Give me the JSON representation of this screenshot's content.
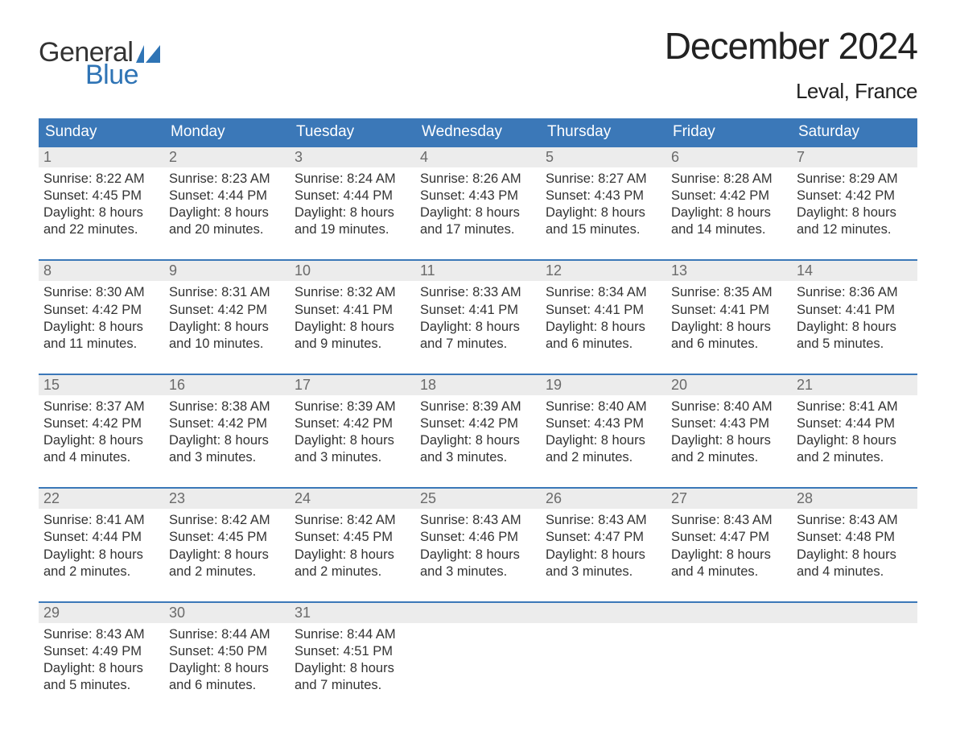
{
  "brand": {
    "part1": "General",
    "part2": "Blue",
    "flag_color": "#2f74b5"
  },
  "title": "December 2024",
  "location": "Leval, France",
  "colors": {
    "header_bg": "#3b78b8",
    "header_text": "#ffffff",
    "daynum_bg": "#ececec",
    "daynum_text": "#6a6a6a",
    "body_text": "#333333",
    "week_border": "#3b78b8",
    "page_bg": "#ffffff",
    "brand_blue": "#2f74b5"
  },
  "fonts": {
    "month_title_pt": 46,
    "location_pt": 26,
    "header_pt": 19,
    "daynum_pt": 18,
    "body_pt": 16.5,
    "logo_pt": 34
  },
  "day_labels": [
    "Sunday",
    "Monday",
    "Tuesday",
    "Wednesday",
    "Thursday",
    "Friday",
    "Saturday"
  ],
  "weeks": [
    [
      {
        "n": "1",
        "sr": "Sunrise: 8:22 AM",
        "ss": "Sunset: 4:45 PM",
        "d1": "Daylight: 8 hours",
        "d2": "and 22 minutes."
      },
      {
        "n": "2",
        "sr": "Sunrise: 8:23 AM",
        "ss": "Sunset: 4:44 PM",
        "d1": "Daylight: 8 hours",
        "d2": "and 20 minutes."
      },
      {
        "n": "3",
        "sr": "Sunrise: 8:24 AM",
        "ss": "Sunset: 4:44 PM",
        "d1": "Daylight: 8 hours",
        "d2": "and 19 minutes."
      },
      {
        "n": "4",
        "sr": "Sunrise: 8:26 AM",
        "ss": "Sunset: 4:43 PM",
        "d1": "Daylight: 8 hours",
        "d2": "and 17 minutes."
      },
      {
        "n": "5",
        "sr": "Sunrise: 8:27 AM",
        "ss": "Sunset: 4:43 PM",
        "d1": "Daylight: 8 hours",
        "d2": "and 15 minutes."
      },
      {
        "n": "6",
        "sr": "Sunrise: 8:28 AM",
        "ss": "Sunset: 4:42 PM",
        "d1": "Daylight: 8 hours",
        "d2": "and 14 minutes."
      },
      {
        "n": "7",
        "sr": "Sunrise: 8:29 AM",
        "ss": "Sunset: 4:42 PM",
        "d1": "Daylight: 8 hours",
        "d2": "and 12 minutes."
      }
    ],
    [
      {
        "n": "8",
        "sr": "Sunrise: 8:30 AM",
        "ss": "Sunset: 4:42 PM",
        "d1": "Daylight: 8 hours",
        "d2": "and 11 minutes."
      },
      {
        "n": "9",
        "sr": "Sunrise: 8:31 AM",
        "ss": "Sunset: 4:42 PM",
        "d1": "Daylight: 8 hours",
        "d2": "and 10 minutes."
      },
      {
        "n": "10",
        "sr": "Sunrise: 8:32 AM",
        "ss": "Sunset: 4:41 PM",
        "d1": "Daylight: 8 hours",
        "d2": "and 9 minutes."
      },
      {
        "n": "11",
        "sr": "Sunrise: 8:33 AM",
        "ss": "Sunset: 4:41 PM",
        "d1": "Daylight: 8 hours",
        "d2": "and 7 minutes."
      },
      {
        "n": "12",
        "sr": "Sunrise: 8:34 AM",
        "ss": "Sunset: 4:41 PM",
        "d1": "Daylight: 8 hours",
        "d2": "and 6 minutes."
      },
      {
        "n": "13",
        "sr": "Sunrise: 8:35 AM",
        "ss": "Sunset: 4:41 PM",
        "d1": "Daylight: 8 hours",
        "d2": "and 6 minutes."
      },
      {
        "n": "14",
        "sr": "Sunrise: 8:36 AM",
        "ss": "Sunset: 4:41 PM",
        "d1": "Daylight: 8 hours",
        "d2": "and 5 minutes."
      }
    ],
    [
      {
        "n": "15",
        "sr": "Sunrise: 8:37 AM",
        "ss": "Sunset: 4:42 PM",
        "d1": "Daylight: 8 hours",
        "d2": "and 4 minutes."
      },
      {
        "n": "16",
        "sr": "Sunrise: 8:38 AM",
        "ss": "Sunset: 4:42 PM",
        "d1": "Daylight: 8 hours",
        "d2": "and 3 minutes."
      },
      {
        "n": "17",
        "sr": "Sunrise: 8:39 AM",
        "ss": "Sunset: 4:42 PM",
        "d1": "Daylight: 8 hours",
        "d2": "and 3 minutes."
      },
      {
        "n": "18",
        "sr": "Sunrise: 8:39 AM",
        "ss": "Sunset: 4:42 PM",
        "d1": "Daylight: 8 hours",
        "d2": "and 3 minutes."
      },
      {
        "n": "19",
        "sr": "Sunrise: 8:40 AM",
        "ss": "Sunset: 4:43 PM",
        "d1": "Daylight: 8 hours",
        "d2": "and 2 minutes."
      },
      {
        "n": "20",
        "sr": "Sunrise: 8:40 AM",
        "ss": "Sunset: 4:43 PM",
        "d1": "Daylight: 8 hours",
        "d2": "and 2 minutes."
      },
      {
        "n": "21",
        "sr": "Sunrise: 8:41 AM",
        "ss": "Sunset: 4:44 PM",
        "d1": "Daylight: 8 hours",
        "d2": "and 2 minutes."
      }
    ],
    [
      {
        "n": "22",
        "sr": "Sunrise: 8:41 AM",
        "ss": "Sunset: 4:44 PM",
        "d1": "Daylight: 8 hours",
        "d2": "and 2 minutes."
      },
      {
        "n": "23",
        "sr": "Sunrise: 8:42 AM",
        "ss": "Sunset: 4:45 PM",
        "d1": "Daylight: 8 hours",
        "d2": "and 2 minutes."
      },
      {
        "n": "24",
        "sr": "Sunrise: 8:42 AM",
        "ss": "Sunset: 4:45 PM",
        "d1": "Daylight: 8 hours",
        "d2": "and 2 minutes."
      },
      {
        "n": "25",
        "sr": "Sunrise: 8:43 AM",
        "ss": "Sunset: 4:46 PM",
        "d1": "Daylight: 8 hours",
        "d2": "and 3 minutes."
      },
      {
        "n": "26",
        "sr": "Sunrise: 8:43 AM",
        "ss": "Sunset: 4:47 PM",
        "d1": "Daylight: 8 hours",
        "d2": "and 3 minutes."
      },
      {
        "n": "27",
        "sr": "Sunrise: 8:43 AM",
        "ss": "Sunset: 4:47 PM",
        "d1": "Daylight: 8 hours",
        "d2": "and 4 minutes."
      },
      {
        "n": "28",
        "sr": "Sunrise: 8:43 AM",
        "ss": "Sunset: 4:48 PM",
        "d1": "Daylight: 8 hours",
        "d2": "and 4 minutes."
      }
    ],
    [
      {
        "n": "29",
        "sr": "Sunrise: 8:43 AM",
        "ss": "Sunset: 4:49 PM",
        "d1": "Daylight: 8 hours",
        "d2": "and 5 minutes."
      },
      {
        "n": "30",
        "sr": "Sunrise: 8:44 AM",
        "ss": "Sunset: 4:50 PM",
        "d1": "Daylight: 8 hours",
        "d2": "and 6 minutes."
      },
      {
        "n": "31",
        "sr": "Sunrise: 8:44 AM",
        "ss": "Sunset: 4:51 PM",
        "d1": "Daylight: 8 hours",
        "d2": "and 7 minutes."
      },
      {
        "empty": true
      },
      {
        "empty": true
      },
      {
        "empty": true
      },
      {
        "empty": true
      }
    ]
  ]
}
